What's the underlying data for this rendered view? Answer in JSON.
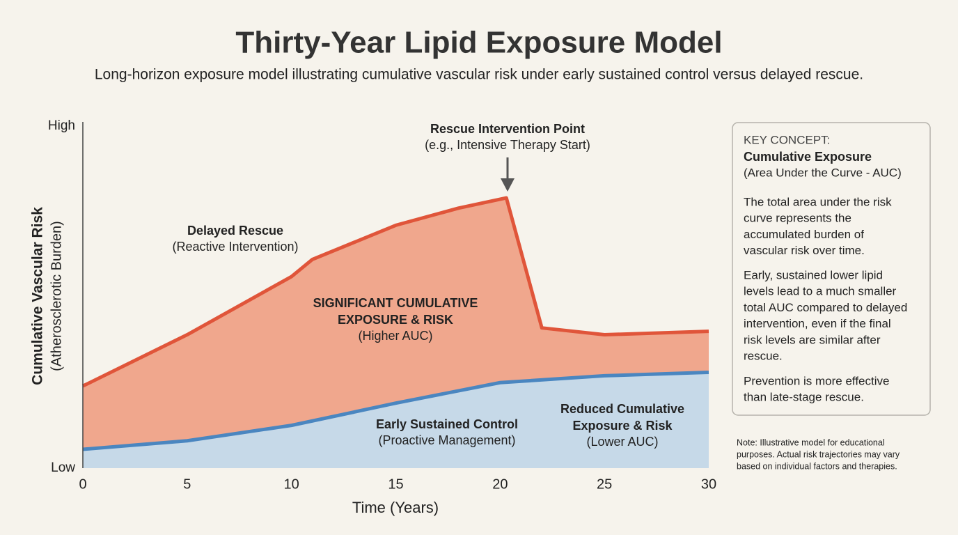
{
  "chart_data": {
    "type": "area",
    "title": "Thirty-Year Lipid Exposure Model",
    "subtitle": "Long-horizon exposure model illustrating cumulative vascular risk under early sustained control versus delayed rescue.",
    "x_label": "Time (Years)",
    "y_label": "Cumulative Vascular Risk",
    "y_label_sub": "(Atherosclerotic Burden)",
    "xlim": [
      0,
      30
    ],
    "xticks": [
      0,
      5,
      10,
      15,
      20,
      25,
      30
    ],
    "ylim": [
      0,
      100
    ],
    "yticks": [
      {
        "value": 0,
        "label": "Low"
      },
      {
        "value": 100,
        "label": "High"
      }
    ],
    "series": [
      {
        "color": "#e0553a",
        "fill": "#f0a78d",
        "x": [
          0,
          5,
          10,
          11,
          15,
          18,
          20.3,
          22,
          25,
          30
        ],
        "values": [
          24,
          39,
          56,
          61,
          71,
          76,
          79,
          41,
          39,
          40
        ]
      },
      {
        "color": "#4a86c0",
        "fill": "#c6d9e8",
        "x": [
          0,
          5,
          10,
          15,
          20,
          25,
          30
        ],
        "values": [
          5.5,
          8,
          12.5,
          19,
          25,
          27,
          28
        ]
      }
    ],
    "annotations": [
      {
        "title": [
          "Rescue Intervention Point"
        ],
        "text": "(e.g., Intensive Therapy Start)"
      },
      {
        "title": [
          "Delayed Rescue"
        ],
        "text": "(Reactive Intervention)"
      },
      {
        "title": [
          "SIGNIFICANT CUMULATIVE",
          "EXPOSURE & RISK"
        ],
        "text": "(Higher AUC)"
      },
      {
        "title": [
          "Early Sustained Control"
        ],
        "text": "(Proactive Management)"
      },
      {
        "title": [
          "Reduced Cumulative",
          "Exposure & Risk"
        ],
        "text": "(Lower AUC)"
      }
    ]
  },
  "panel": {
    "heading": "KEY CONCEPT:",
    "title": "Cumulative Exposure",
    "subtitle": "(Area Under the Curve - AUC)",
    "paragraphs": [
      [
        "The total area under the risk",
        "curve represents the",
        "accumulated burden of",
        "vascular risk over time."
      ],
      [
        "Early, sustained lower lipid",
        "levels lead to a much smaller",
        "total AUC compared to delayed",
        "intervention, even if the final",
        "risk levels are similar after",
        "rescue."
      ],
      [
        "Prevention is more effective",
        "than late-stage rescue."
      ]
    ]
  },
  "note": [
    "Note: Illustrative model for educational",
    "purposes. Actual risk trajectories may vary",
    "based on individual factors and therapies."
  ]
}
